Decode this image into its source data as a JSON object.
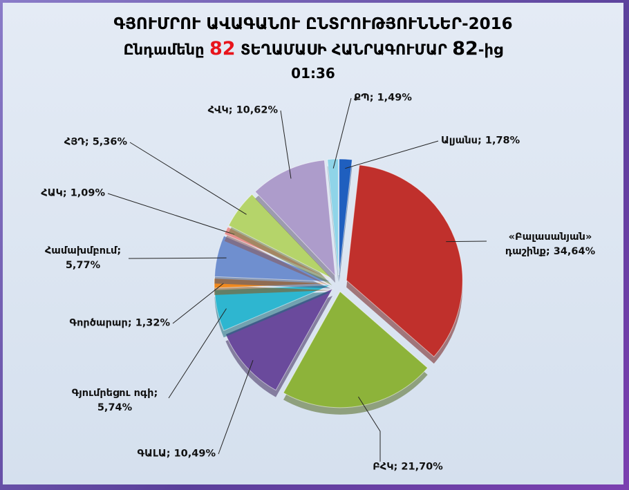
{
  "chart_data": {
    "type": "pie",
    "title": "ԳՅՈՒՄՐՈՒ ԱՎԱԳԱՆՈՒ ԸՆՏՐՈՒԹՅՈՒՆՆԵՐ-2016",
    "subtitle": [
      "Ընդամենը",
      82,
      "ՏԵՂԱՄԱՍԻ ՀԱՆՐԱԳՈՒՄԱՐ",
      82,
      "-ից"
    ],
    "time": "01:36",
    "label_separator": "; ",
    "categories": [
      "Ալյանս",
      "«Բալասանյան» դաշինք",
      "ԲՀԿ",
      "ԳԱԼԱ",
      "Գյումրեցու ոգի",
      "Գործարար",
      "Համախմբում",
      "ՀԱԿ",
      "ՀՅԴ",
      "ՀՎԿ",
      "ՔՊ"
    ],
    "values": [
      1.78,
      34.64,
      21.7,
      10.49,
      5.74,
      1.32,
      5.77,
      1.09,
      5.36,
      10.62,
      1.49
    ],
    "value_labels": [
      "1,78%",
      "34,64%",
      "21,70%",
      "10,49%",
      "5,74%",
      "1,32%",
      "5,77%",
      "1,09%",
      "5,36%",
      "10,62%",
      "1,49%"
    ],
    "colors": [
      "#1f5fbf",
      "#c0302c",
      "#8db33a",
      "#6a4a9c",
      "#2eb6d0",
      "#f0891f",
      "#6f8fcf",
      "#e8918f",
      "#b5d46a",
      "#ad9ccb",
      "#8fd4e8"
    ]
  }
}
